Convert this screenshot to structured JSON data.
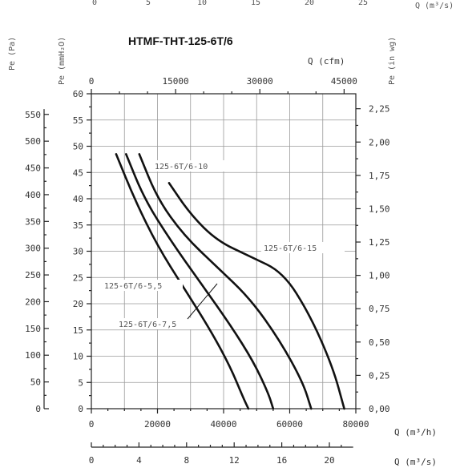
{
  "chart_data": {
    "type": "line",
    "title": "HTMF-THT-125-6T/6",
    "top_axis_label": "Q (m³/s)",
    "top_axis_ticks": [
      "0",
      "5",
      "10",
      "15",
      "20",
      "25"
    ],
    "cfm_axis_label": "Q (cfm)",
    "cfm_ticks": [
      "0",
      "15000",
      "30000",
      "45000"
    ],
    "pa_axis_label": "Pe (Pa)",
    "pa_ticks": [
      "0",
      "50",
      "100",
      "150",
      "200",
      "250",
      "300",
      "350",
      "400",
      "450",
      "500",
      "550"
    ],
    "mmh2o_axis_label": "Pe (mmH₂O)",
    "mmh2o_ticks": [
      "0",
      "5",
      "10",
      "15",
      "20",
      "25",
      "30",
      "35",
      "40",
      "45",
      "50",
      "55",
      "60"
    ],
    "inwg_axis_label": "Pe (in wg)",
    "inwg_ticks": [
      "0,00",
      "0,25",
      "0,50",
      "0,75",
      "1,00",
      "1,25",
      "1,50",
      "1,75",
      "2,00",
      "2,25"
    ],
    "x_axis_label": "Q (m³/h)",
    "x_ticks": [
      "0",
      "20000",
      "40000",
      "60000",
      "80000"
    ],
    "bottom_axis_label": "Q (m³/s)",
    "bottom_ticks": [
      "0",
      "4",
      "8",
      "12",
      "16",
      "20"
    ],
    "xlim": [
      0,
      80000
    ],
    "ylim": [
      0,
      60
    ],
    "grid": true,
    "series": [
      {
        "name": "125-6T/6-5,5",
        "x": [
          7500,
          13000,
          20000,
          28000,
          36000,
          42000,
          46000,
          47500
        ],
        "y": [
          48.5,
          40,
          31,
          23,
          15,
          8,
          2,
          0
        ]
      },
      {
        "name": "125-6T/6-7,5",
        "x": [
          10500,
          16000,
          24000,
          33000,
          42000,
          49000,
          53500,
          55000
        ],
        "y": [
          48.5,
          40,
          32,
          24,
          16,
          9,
          3,
          0
        ]
      },
      {
        "name": "125-6T/6-10",
        "x": [
          14500,
          20000,
          28000,
          38000,
          48000,
          57000,
          64000,
          66500
        ],
        "y": [
          48.5,
          40,
          33,
          27,
          21,
          13,
          5,
          0
        ]
      },
      {
        "name": "125-6T/6-15",
        "x": [
          23500,
          30000,
          38000,
          48000,
          58000,
          66000,
          73000,
          76500
        ],
        "y": [
          43,
          37,
          32,
          29,
          26,
          18,
          8,
          0
        ]
      }
    ]
  }
}
